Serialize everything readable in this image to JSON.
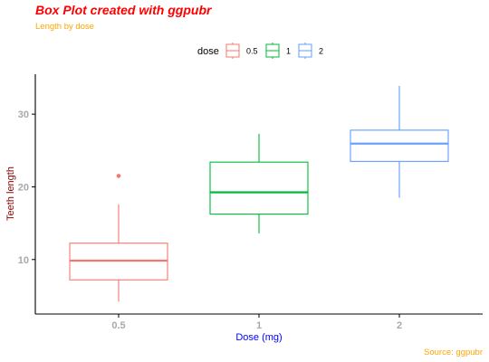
{
  "chart_data": {
    "type": "box",
    "title": "Box Plot created with ggpubr",
    "subtitle": "Length by dose",
    "caption": "Source: ggpubr",
    "xlabel": "Dose (mg)",
    "ylabel": "Teeth length",
    "categories": [
      "0.5",
      "1",
      "2"
    ],
    "ylim": [
      2.5,
      35.5
    ],
    "y_ticks": [
      10,
      20,
      30
    ],
    "grid": false,
    "legend": {
      "title": "dose",
      "position": "top",
      "entries": [
        "0.5",
        "1",
        "2"
      ]
    },
    "series": [
      {
        "name": "0.5",
        "min": 4.2,
        "q1": 7.2,
        "median": 9.85,
        "q3": 12.25,
        "max": 17.6,
        "outliers": [
          21.5
        ],
        "color": "#F8766D"
      },
      {
        "name": "1",
        "min": 13.6,
        "q1": 16.25,
        "median": 19.25,
        "q3": 23.4,
        "max": 27.3,
        "outliers": [],
        "color": "#00BA38"
      },
      {
        "name": "2",
        "min": 18.5,
        "q1": 23.5,
        "median": 25.95,
        "q3": 27.8,
        "max": 33.9,
        "outliers": [],
        "color": "#619CFF"
      }
    ],
    "colors": {
      "title": "#FF0000",
      "subtitle": "#FFA500",
      "caption": "#FFA500",
      "xlabel": "#0000FF",
      "ylabel": "#8B0000",
      "tick_labels": "#A9A9A9",
      "axis_line": "#000000"
    }
  }
}
